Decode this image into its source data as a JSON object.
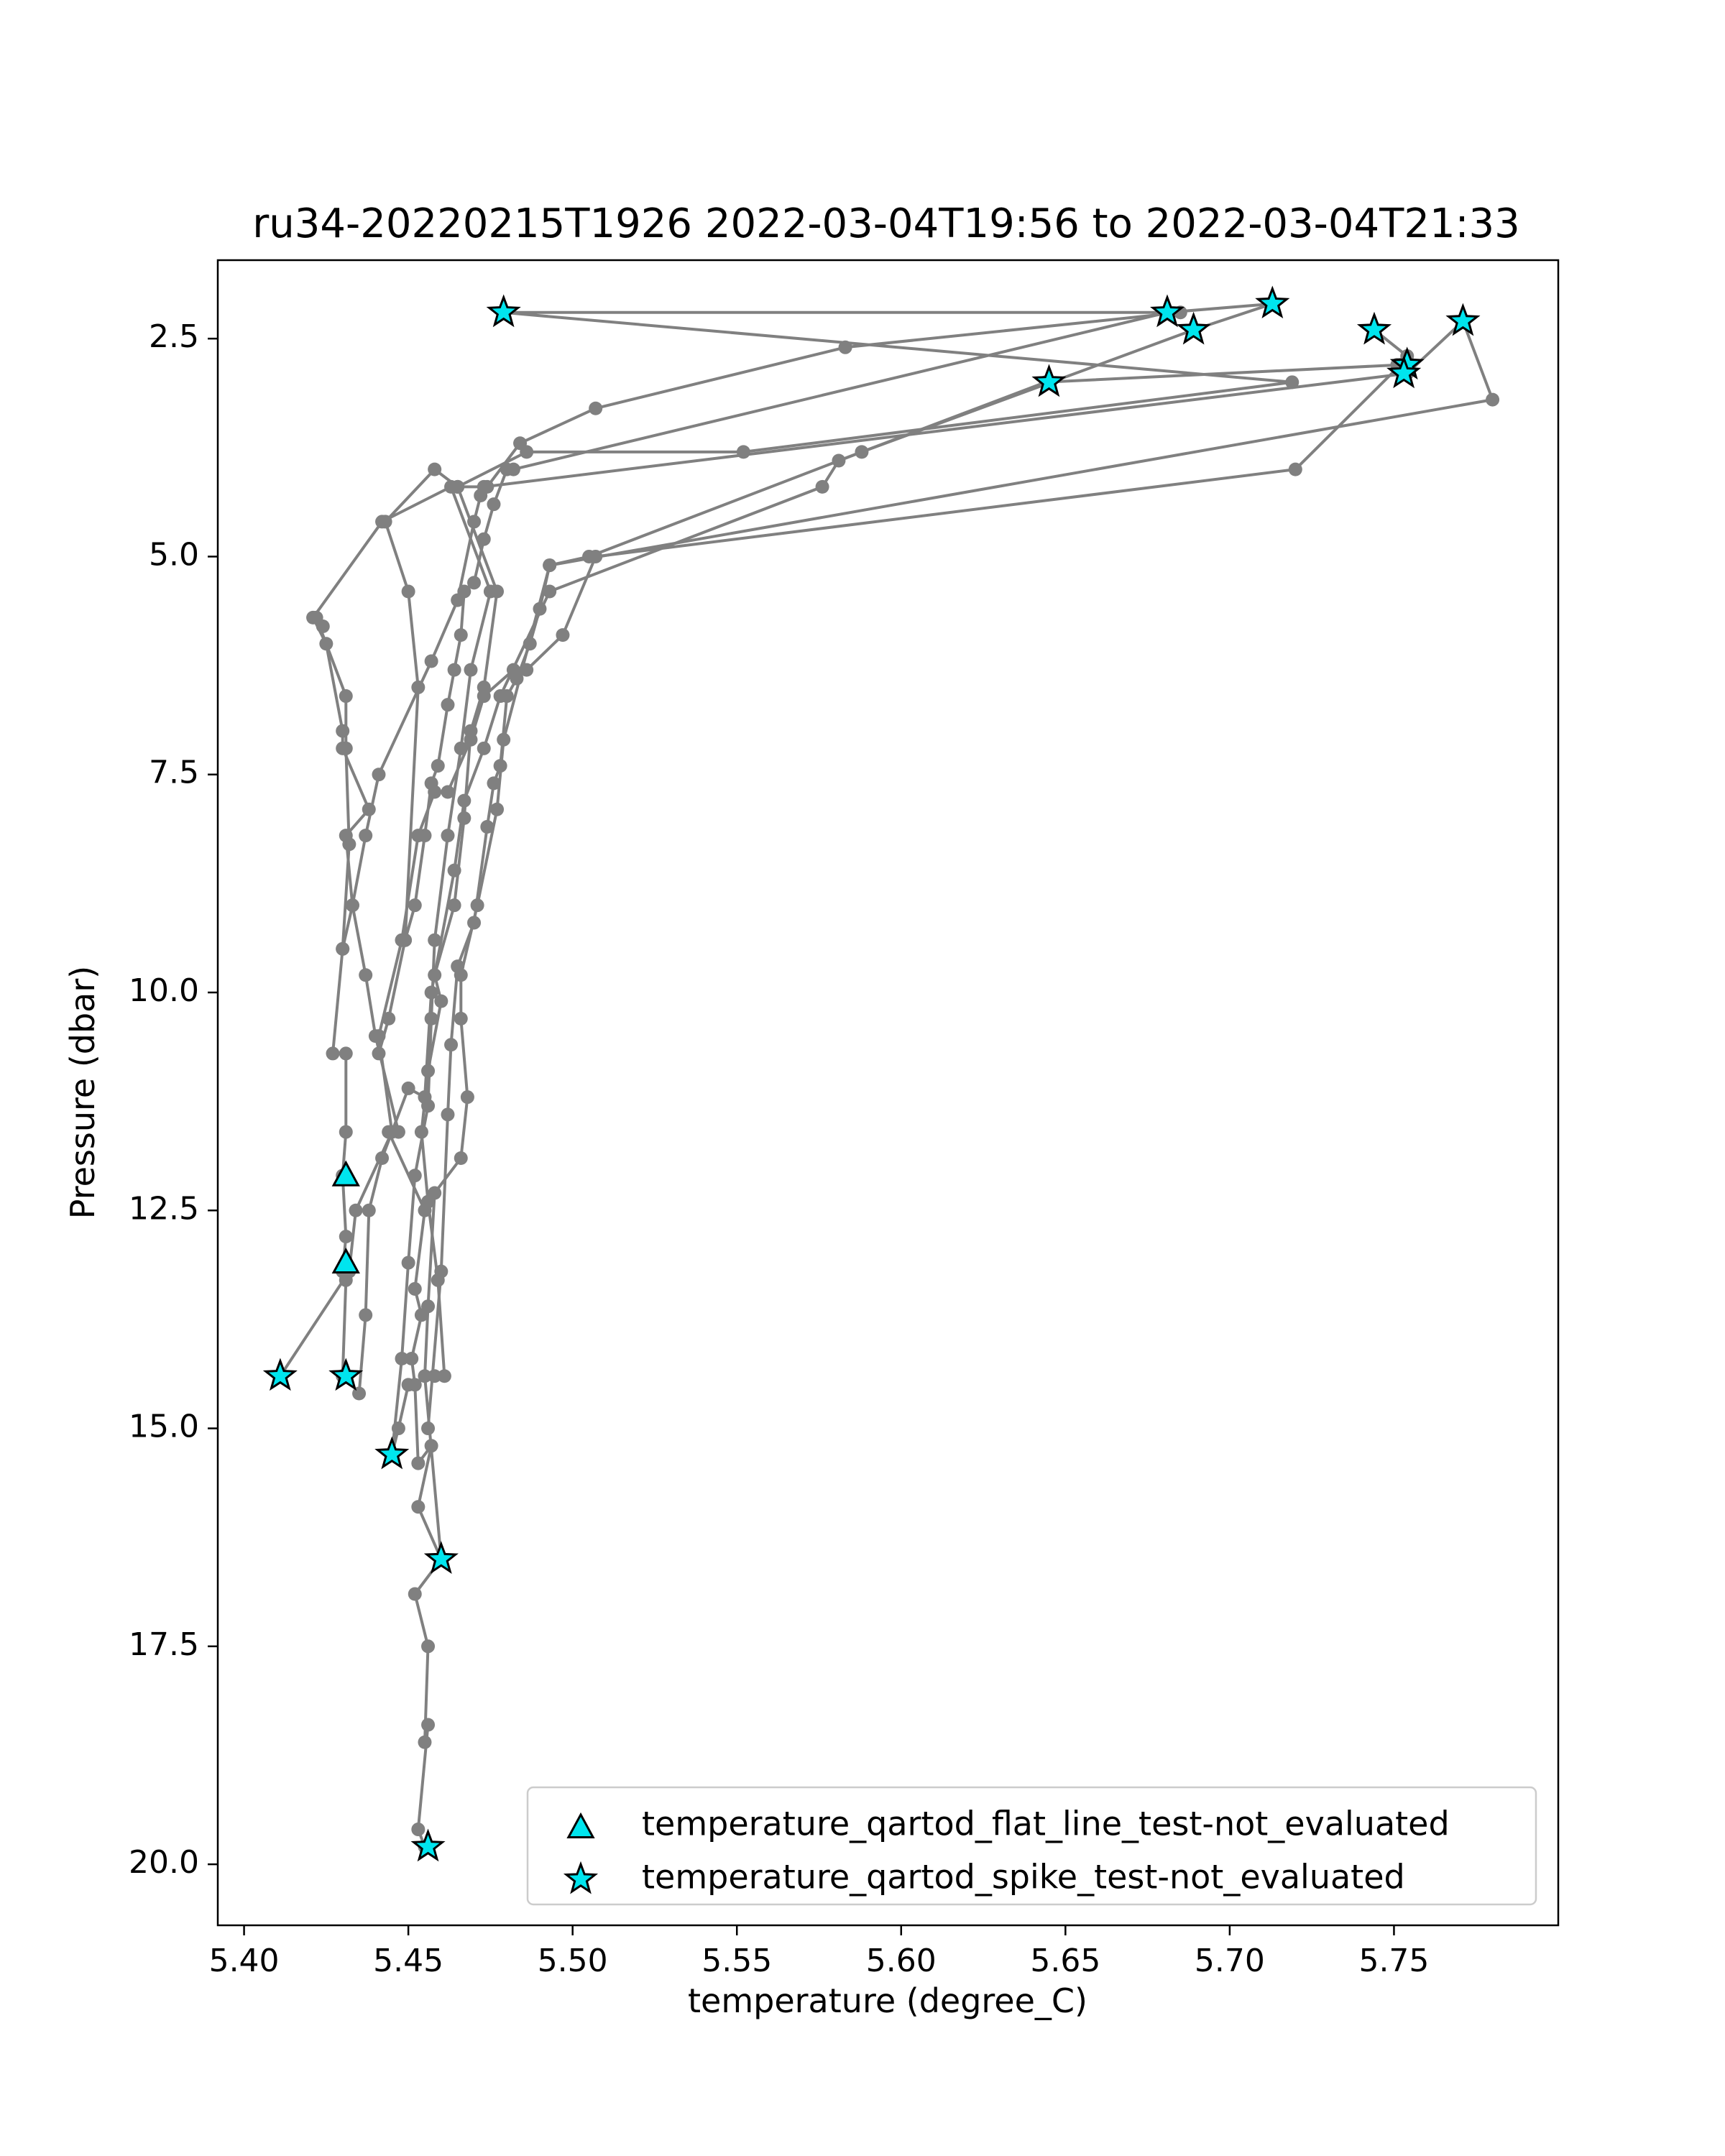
{
  "chart_data": {
    "type": "line",
    "title": "ru34-20220215T1926 2022-03-04T19:56 to 2022-03-04T21:33",
    "xlabel": "temperature (degree_C)",
    "ylabel": "Pressure (dbar)",
    "xlim": [
      5.392,
      5.8
    ],
    "ylim": [
      20.7,
      1.6
    ],
    "y_inverted": true,
    "xticks": [
      5.4,
      5.45,
      5.5,
      5.55,
      5.6,
      5.65,
      5.7,
      5.75
    ],
    "xtick_labels": [
      "5.40",
      "5.45",
      "5.50",
      "5.55",
      "5.60",
      "5.65",
      "5.70",
      "5.75"
    ],
    "yticks": [
      2.5,
      5.0,
      7.5,
      10.0,
      12.5,
      15.0,
      17.5,
      20.0
    ],
    "ytick_labels": [
      "2.5",
      "5.0",
      "7.5",
      "10.0",
      "12.5",
      "15.0",
      "17.5",
      "20.0"
    ],
    "grid": false,
    "legend_position": "bottom-right",
    "colors": {
      "line": "#808080",
      "flag_fill": "#00e5ee",
      "flag_edge": "#000000",
      "axes": "#000000"
    },
    "series": [
      {
        "values": [
          [
            5.455,
            19.8
          ],
          [
            5.453,
            19.6
          ],
          [
            5.456,
            18.4
          ],
          [
            5.455,
            18.6
          ],
          [
            5.456,
            17.5
          ],
          [
            5.452,
            16.9
          ],
          [
            5.46,
            16.5
          ],
          [
            5.453,
            15.9
          ],
          [
            5.457,
            15.2
          ],
          [
            5.453,
            15.4
          ],
          [
            5.452,
            14.5
          ],
          [
            5.451,
            14.2
          ],
          [
            5.454,
            13.7
          ],
          [
            5.452,
            13.4
          ],
          [
            5.455,
            12.5
          ],
          [
            5.444,
            11.6
          ],
          [
            5.447,
            11.6
          ],
          [
            5.44,
            10.5
          ],
          [
            5.437,
            9.8
          ],
          [
            5.433,
            9.0
          ],
          [
            5.431,
            8.2
          ],
          [
            5.438,
            7.9
          ],
          [
            5.43,
            7.2
          ],
          [
            5.43,
            7.0
          ],
          [
            5.425,
            6.0
          ],
          [
            5.421,
            5.7
          ],
          [
            5.442,
            4.6
          ],
          [
            5.463,
            4.2
          ],
          [
            5.475,
            5.4
          ],
          [
            5.469,
            6.3
          ],
          [
            5.466,
            7.2
          ],
          [
            5.462,
            8.2
          ],
          [
            5.458,
            9.4
          ],
          [
            5.457,
            10.3
          ],
          [
            5.456,
            11.3
          ],
          [
            5.452,
            12.1
          ],
          [
            5.45,
            13.1
          ],
          [
            5.448,
            14.2
          ],
          [
            5.445,
            15.3
          ]
        ]
      },
      {
        "values": [
          [
            5.445,
            15.3
          ],
          [
            5.447,
            15.0
          ],
          [
            5.45,
            14.5
          ],
          [
            5.458,
            14.4
          ],
          [
            5.461,
            14.4
          ],
          [
            5.459,
            13.3
          ],
          [
            5.456,
            12.4
          ],
          [
            5.454,
            11.6
          ],
          [
            5.456,
            10.9
          ],
          [
            5.46,
            10.1
          ],
          [
            5.458,
            9.8
          ],
          [
            5.464,
            9.0
          ],
          [
            5.467,
            8.0
          ],
          [
            5.469,
            7.0
          ],
          [
            5.473,
            6.5
          ],
          [
            5.477,
            5.4
          ],
          [
            5.465,
            4.2
          ],
          [
            5.486,
            3.8
          ],
          [
            5.552,
            3.8
          ],
          [
            5.719,
            3.0
          ],
          [
            5.479,
            2.2
          ],
          [
            5.681,
            2.2
          ],
          [
            5.685,
            2.2
          ],
          [
            5.583,
            2.6
          ],
          [
            5.507,
            3.3
          ],
          [
            5.484,
            3.7
          ],
          [
            5.474,
            4.2
          ],
          [
            5.465,
            4.2
          ],
          [
            5.458,
            4.0
          ],
          [
            5.443,
            4.6
          ],
          [
            5.45,
            5.4
          ],
          [
            5.453,
            6.5
          ],
          [
            5.449,
            9.4
          ]
        ]
      },
      {
        "values": [
          [
            5.43,
            14.4
          ],
          [
            5.431,
            13.3
          ],
          [
            5.43,
            13.2
          ],
          [
            5.431,
            12.8
          ],
          [
            5.43,
            12.1
          ],
          [
            5.431,
            11.6
          ],
          [
            5.431,
            10.7
          ],
          [
            5.427,
            10.7
          ],
          [
            5.43,
            9.5
          ],
          [
            5.432,
            8.3
          ],
          [
            5.431,
            7.2
          ],
          [
            5.431,
            6.6
          ],
          [
            5.422,
            5.7
          ],
          [
            5.424,
            5.8
          ]
        ]
      },
      {
        "values": [
          [
            5.411,
            14.4
          ],
          [
            5.432,
            13.2
          ],
          [
            5.434,
            12.5
          ],
          [
            5.445,
            11.6
          ],
          [
            5.441,
            10.5
          ],
          [
            5.448,
            9.4
          ],
          [
            5.453,
            8.2
          ],
          [
            5.458,
            7.7
          ],
          [
            5.462,
            7.7
          ],
          [
            5.469,
            7.1
          ],
          [
            5.473,
            6.6
          ],
          [
            5.482,
            6.3
          ],
          [
            5.486,
            6.3
          ],
          [
            5.497,
            5.9
          ],
          [
            5.507,
            5.0
          ],
          [
            5.72,
            4.0
          ],
          [
            5.752,
            2.8
          ],
          [
            5.753,
            2.8
          ],
          [
            5.754,
            2.7
          ],
          [
            5.744,
            2.4
          ]
        ]
      },
      {
        "values": [
          [
            5.435,
            14.6
          ],
          [
            5.437,
            13.7
          ],
          [
            5.438,
            12.5
          ],
          [
            5.442,
            11.9
          ],
          [
            5.45,
            11.1
          ],
          [
            5.455,
            11.2
          ],
          [
            5.457,
            10.0
          ],
          [
            5.464,
            8.6
          ],
          [
            5.467,
            7.8
          ],
          [
            5.473,
            7.2
          ],
          [
            5.478,
            6.6
          ],
          [
            5.493,
            5.4
          ],
          [
            5.576,
            4.2
          ],
          [
            5.581,
            3.9
          ],
          [
            5.644,
            3.0
          ],
          [
            5.752,
            2.8
          ],
          [
            5.751,
            2.8
          ]
        ]
      },
      {
        "values": [
          [
            5.46,
            16.5
          ],
          [
            5.455,
            14.4
          ],
          [
            5.456,
            13.6
          ],
          [
            5.458,
            12.3
          ],
          [
            5.466,
            11.9
          ],
          [
            5.468,
            11.2
          ],
          [
            5.466,
            10.3
          ],
          [
            5.466,
            9.8
          ],
          [
            5.471,
            9.0
          ],
          [
            5.477,
            7.9
          ],
          [
            5.479,
            7.1
          ],
          [
            5.493,
            5.1
          ],
          [
            5.78,
            3.2
          ],
          [
            5.771,
            2.3
          ],
          [
            5.754,
            2.9
          ],
          [
            5.473,
            4.2
          ],
          [
            5.472,
            4.3
          ],
          [
            5.47,
            4.6
          ],
          [
            5.465,
            5.5
          ],
          [
            5.457,
            6.2
          ],
          [
            5.441,
            7.5
          ],
          [
            5.437,
            8.2
          ],
          [
            5.433,
            9.0
          ],
          [
            5.43,
            9.5
          ]
        ]
      },
      {
        "values": [
          [
            5.456,
            15.0
          ],
          [
            5.46,
            13.2
          ],
          [
            5.462,
            11.4
          ],
          [
            5.463,
            10.6
          ],
          [
            5.465,
            9.7
          ],
          [
            5.47,
            9.2
          ],
          [
            5.474,
            8.1
          ],
          [
            5.476,
            7.6
          ],
          [
            5.478,
            7.4
          ],
          [
            5.48,
            6.6
          ],
          [
            5.483,
            6.4
          ],
          [
            5.487,
            6.0
          ],
          [
            5.49,
            5.6
          ],
          [
            5.493,
            5.1
          ],
          [
            5.505,
            5.0
          ],
          [
            5.588,
            3.8
          ],
          [
            5.689,
            2.4
          ],
          [
            5.713,
            2.1
          ],
          [
            5.681,
            2.2
          ],
          [
            5.482,
            4.0
          ]
        ]
      },
      {
        "values": [
          [
            5.441,
            10.7
          ],
          [
            5.444,
            10.3
          ],
          [
            5.449,
            9.4
          ],
          [
            5.452,
            9.0
          ],
          [
            5.455,
            8.2
          ],
          [
            5.457,
            7.6
          ],
          [
            5.459,
            7.4
          ],
          [
            5.462,
            6.7
          ],
          [
            5.464,
            6.3
          ],
          [
            5.466,
            5.9
          ],
          [
            5.467,
            5.4
          ],
          [
            5.47,
            5.3
          ],
          [
            5.473,
            4.8
          ],
          [
            5.476,
            4.4
          ],
          [
            5.48,
            4.0
          ]
        ]
      }
    ],
    "flags": [
      {
        "name": "temperature_qartod_flat_line_test-not_evaluated",
        "marker": "triangle",
        "points": [
          [
            5.431,
            12.1
          ],
          [
            5.431,
            13.1
          ]
        ]
      },
      {
        "name": "temperature_qartod_spike_test-not_evaluated",
        "marker": "star",
        "points": [
          [
            5.479,
            2.2
          ],
          [
            5.681,
            2.2
          ],
          [
            5.713,
            2.1
          ],
          [
            5.689,
            2.4
          ],
          [
            5.744,
            2.4
          ],
          [
            5.771,
            2.3
          ],
          [
            5.754,
            2.8
          ],
          [
            5.753,
            2.9
          ],
          [
            5.645,
            3.0
          ],
          [
            5.411,
            14.4
          ],
          [
            5.431,
            14.4
          ],
          [
            5.445,
            15.3
          ],
          [
            5.46,
            16.5
          ],
          [
            5.456,
            19.8
          ]
        ]
      }
    ],
    "legend": [
      "temperature_qartod_flat_line_test-not_evaluated",
      "temperature_qartod_spike_test-not_evaluated"
    ]
  }
}
